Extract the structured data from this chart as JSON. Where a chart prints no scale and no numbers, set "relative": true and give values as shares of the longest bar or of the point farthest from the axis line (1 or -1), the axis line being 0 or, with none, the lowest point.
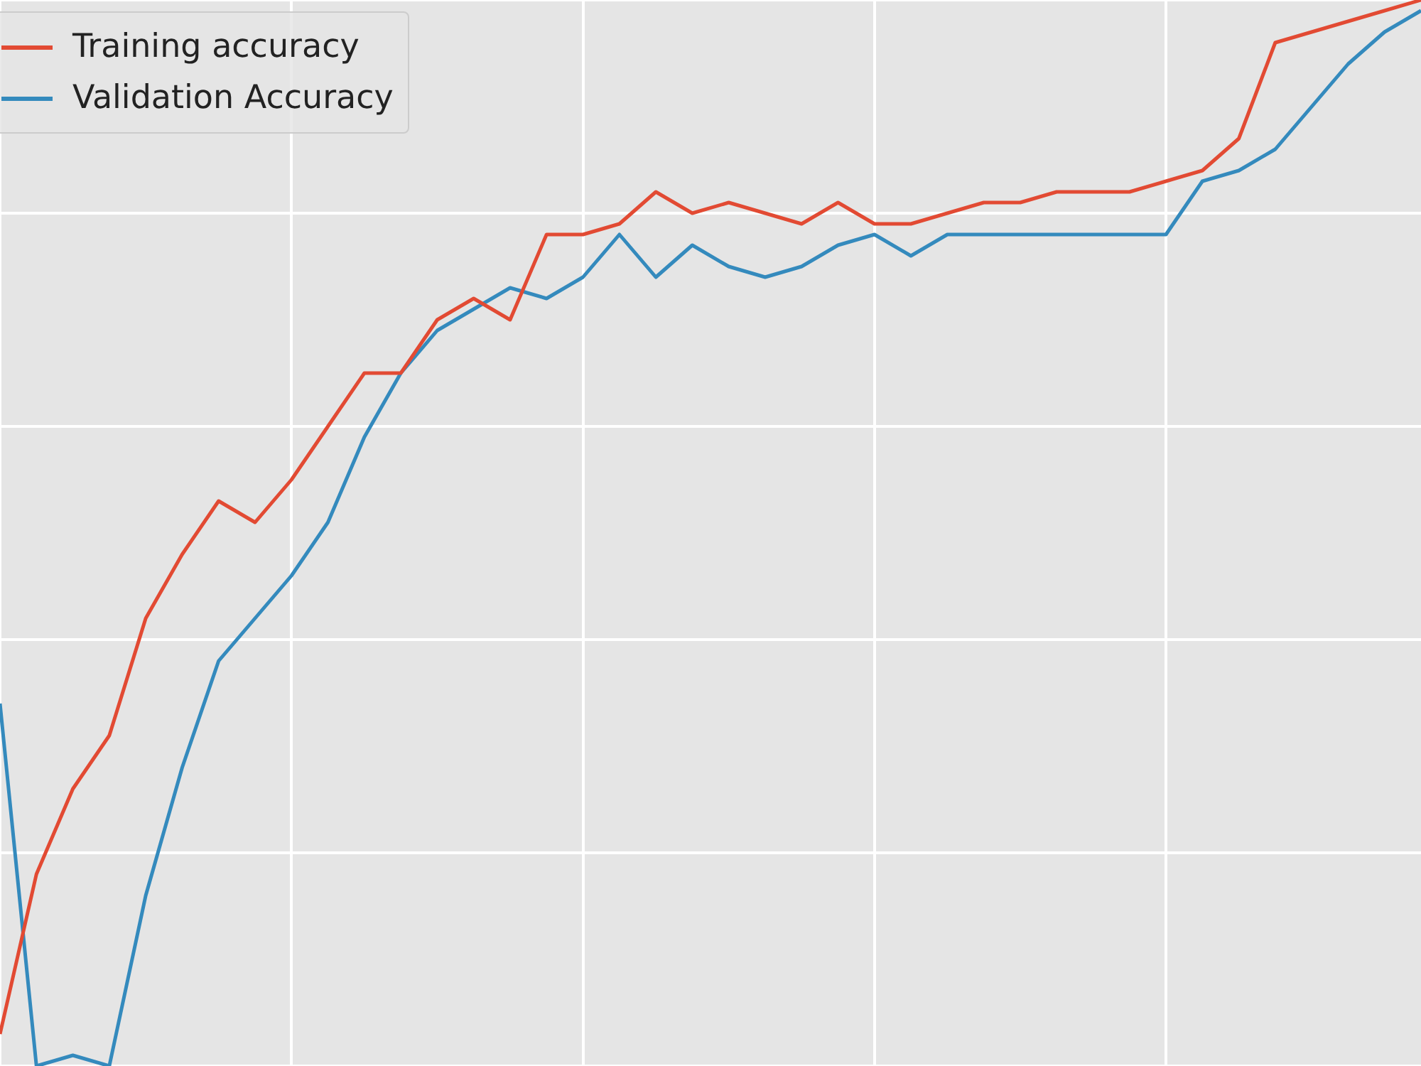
{
  "chart_data": {
    "type": "line",
    "relative": true,
    "grid": true,
    "legend": "top left",
    "marker": "none",
    "line_style": "solid",
    "categories": [
      null,
      null,
      null,
      null,
      null,
      null,
      null,
      null,
      null,
      null,
      null,
      null,
      null,
      null,
      null,
      null,
      null,
      null,
      null,
      null,
      null,
      null,
      null,
      null,
      null,
      null,
      null,
      null,
      null,
      null,
      null,
      null,
      null,
      null,
      null,
      null,
      null,
      null,
      null,
      null
    ],
    "series": [
      {
        "name": "Training accuracy",
        "color": "#e24a33",
        "values": [
          0.03,
          0.18,
          0.26,
          0.31,
          0.42,
          0.48,
          0.53,
          0.51,
          0.55,
          0.6,
          0.65,
          0.65,
          0.7,
          0.72,
          0.7,
          0.78,
          0.78,
          0.79,
          0.82,
          0.8,
          0.81,
          0.8,
          0.79,
          0.81,
          0.79,
          0.79,
          0.8,
          0.81,
          0.81,
          0.82,
          0.82,
          0.82,
          0.83,
          0.84,
          0.87,
          0.96,
          0.97,
          0.98,
          0.99,
          1
        ]
      },
      {
        "name": "Validation Accuracy",
        "color": "#348abd",
        "values": [
          0.34,
          0,
          0.01,
          0,
          0.16,
          0.28,
          0.38,
          0.42,
          0.46,
          0.51,
          0.59,
          0.65,
          0.69,
          0.71,
          0.73,
          0.72,
          0.74,
          0.78,
          0.74,
          0.77,
          0.75,
          0.74,
          0.75,
          0.77,
          0.78,
          0.76,
          0.78,
          0.78,
          0.78,
          0.78,
          0.78,
          0.78,
          0.78,
          0.83,
          0.84,
          0.86,
          0.9,
          0.94,
          0.97,
          0.99
        ]
      }
    ]
  }
}
